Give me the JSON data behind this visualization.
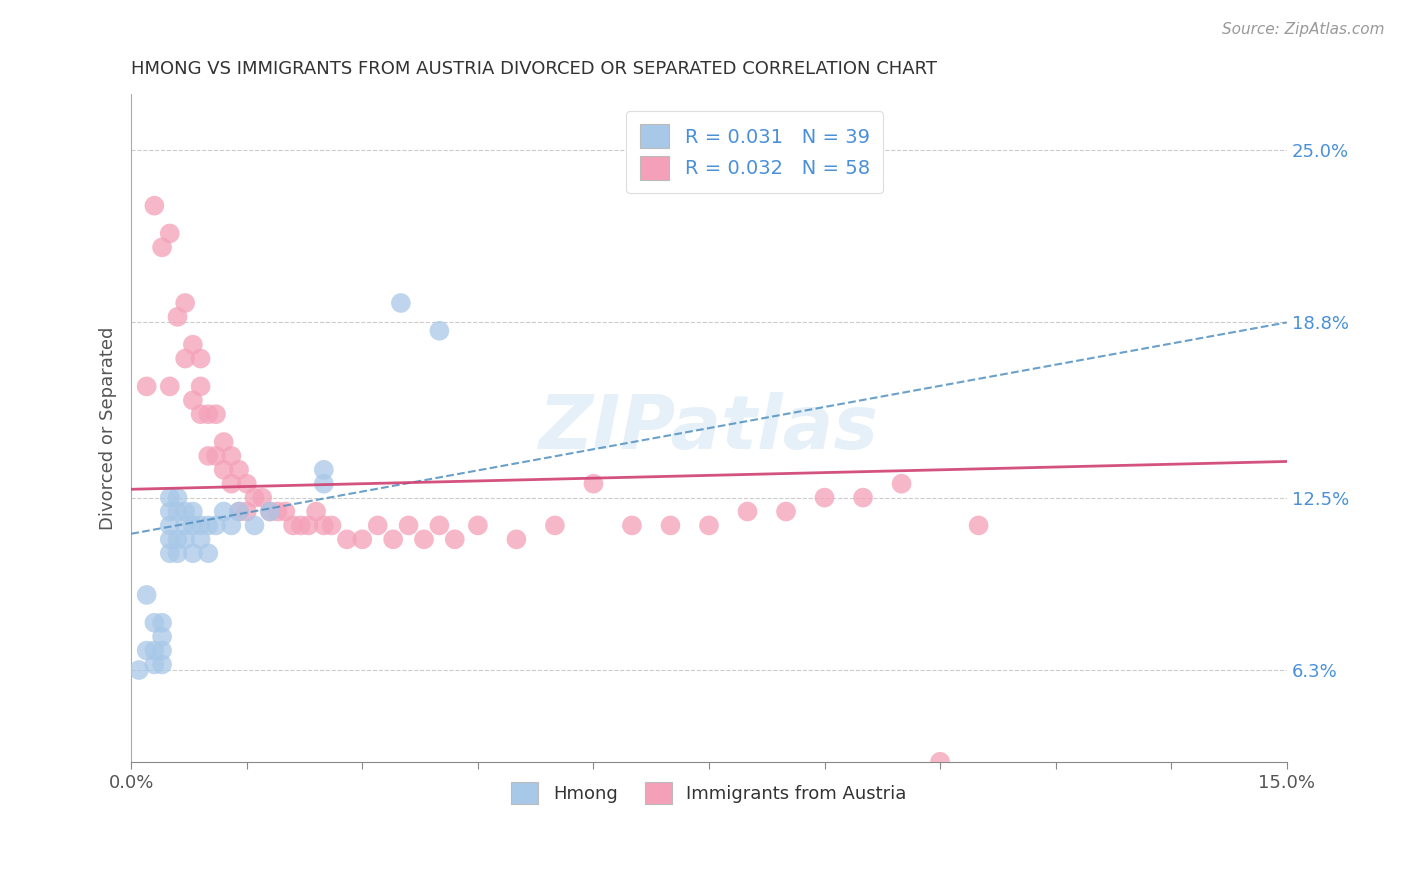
{
  "title": "HMONG VS IMMIGRANTS FROM AUSTRIA DIVORCED OR SEPARATED CORRELATION CHART",
  "source_text": "Source: ZipAtlas.com",
  "ylabel": "Divorced or Separated",
  "xmin": 0.0,
  "xmax": 0.15,
  "ymin": 0.03,
  "ymax": 0.27,
  "yticks": [
    0.063,
    0.125,
    0.188,
    0.25
  ],
  "ytick_labels": [
    "6.3%",
    "12.5%",
    "18.8%",
    "25.0%"
  ],
  "xticks": [
    0.0,
    0.015,
    0.03,
    0.045,
    0.06,
    0.075,
    0.09,
    0.105,
    0.12,
    0.135,
    0.15
  ],
  "xtick_labels": [
    "0.0%",
    "",
    "",
    "",
    "",
    "",
    "",
    "",
    "",
    "",
    "15.0%"
  ],
  "legend_labels": [
    "Hmong",
    "Immigrants from Austria"
  ],
  "hmong_R": "0.031",
  "hmong_N": "39",
  "austria_R": "0.032",
  "austria_N": "58",
  "hmong_color": "#a8c8e8",
  "austria_color": "#f4a0b8",
  "hmong_line_color": "#5090c0",
  "austria_line_color": "#d04070",
  "watermark": "ZIPatlas",
  "hmong_x": [
    0.001,
    0.002,
    0.002,
    0.003,
    0.003,
    0.003,
    0.004,
    0.004,
    0.004,
    0.004,
    0.005,
    0.005,
    0.005,
    0.005,
    0.005,
    0.006,
    0.006,
    0.006,
    0.006,
    0.007,
    0.007,
    0.007,
    0.008,
    0.008,
    0.008,
    0.009,
    0.009,
    0.01,
    0.01,
    0.011,
    0.012,
    0.013,
    0.014,
    0.016,
    0.018,
    0.025,
    0.025,
    0.035,
    0.04
  ],
  "hmong_y": [
    0.063,
    0.07,
    0.09,
    0.065,
    0.07,
    0.08,
    0.065,
    0.07,
    0.075,
    0.08,
    0.105,
    0.11,
    0.115,
    0.12,
    0.125,
    0.105,
    0.11,
    0.12,
    0.125,
    0.11,
    0.115,
    0.12,
    0.105,
    0.115,
    0.12,
    0.11,
    0.115,
    0.105,
    0.115,
    0.115,
    0.12,
    0.115,
    0.12,
    0.115,
    0.12,
    0.13,
    0.135,
    0.195,
    0.185
  ],
  "austria_x": [
    0.002,
    0.003,
    0.004,
    0.005,
    0.005,
    0.006,
    0.007,
    0.007,
    0.008,
    0.008,
    0.009,
    0.009,
    0.009,
    0.01,
    0.01,
    0.011,
    0.011,
    0.012,
    0.012,
    0.013,
    0.013,
    0.014,
    0.014,
    0.015,
    0.015,
    0.016,
    0.017,
    0.018,
    0.019,
    0.02,
    0.021,
    0.022,
    0.023,
    0.024,
    0.025,
    0.026,
    0.028,
    0.03,
    0.032,
    0.034,
    0.036,
    0.038,
    0.04,
    0.042,
    0.045,
    0.05,
    0.055,
    0.06,
    0.065,
    0.07,
    0.075,
    0.08,
    0.085,
    0.09,
    0.095,
    0.1,
    0.105,
    0.11
  ],
  "austria_y": [
    0.165,
    0.23,
    0.215,
    0.165,
    0.22,
    0.19,
    0.175,
    0.195,
    0.16,
    0.18,
    0.155,
    0.165,
    0.175,
    0.14,
    0.155,
    0.14,
    0.155,
    0.135,
    0.145,
    0.13,
    0.14,
    0.12,
    0.135,
    0.12,
    0.13,
    0.125,
    0.125,
    0.12,
    0.12,
    0.12,
    0.115,
    0.115,
    0.115,
    0.12,
    0.115,
    0.115,
    0.11,
    0.11,
    0.115,
    0.11,
    0.115,
    0.11,
    0.115,
    0.11,
    0.115,
    0.11,
    0.115,
    0.13,
    0.115,
    0.115,
    0.115,
    0.12,
    0.12,
    0.125,
    0.125,
    0.13,
    0.03,
    0.115
  ],
  "hmong_line_x": [
    0.0,
    0.15
  ],
  "hmong_line_y": [
    0.112,
    0.188
  ],
  "austria_line_x": [
    0.0,
    0.15
  ],
  "austria_line_y": [
    0.128,
    0.138
  ]
}
